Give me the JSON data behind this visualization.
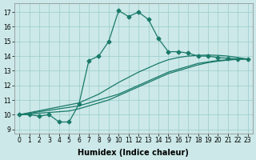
{
  "xlabel": "Humidex (Indice chaleur)",
  "bg_color": "#cce8e8",
  "grid_color": "#99cccc",
  "line_color": "#1a7a6a",
  "xlim": [
    -0.5,
    23.5
  ],
  "ylim": [
    8.7,
    17.6
  ],
  "xticks": [
    0,
    1,
    2,
    3,
    4,
    5,
    6,
    7,
    8,
    9,
    10,
    11,
    12,
    13,
    14,
    15,
    16,
    17,
    18,
    19,
    20,
    21,
    22,
    23
  ],
  "yticks": [
    9,
    10,
    11,
    12,
    13,
    14,
    15,
    16,
    17
  ],
  "line1_x": [
    0,
    1,
    2,
    3,
    4,
    5,
    6,
    7,
    8,
    9,
    10,
    11,
    12,
    13,
    14,
    15,
    16,
    17,
    18,
    19,
    20,
    21,
    22,
    23
  ],
  "line1_y": [
    10.0,
    10.0,
    9.9,
    10.0,
    9.5,
    9.5,
    10.7,
    13.7,
    14.0,
    15.0,
    17.1,
    16.7,
    17.0,
    16.5,
    15.2,
    14.3,
    14.3,
    14.2,
    14.0,
    14.0,
    13.9,
    13.85,
    13.8,
    13.8
  ],
  "line2_x": [
    0,
    1,
    2,
    3,
    4,
    5,
    6,
    7,
    8,
    9,
    10,
    11,
    12,
    13,
    14,
    15,
    16,
    17,
    18,
    19,
    20,
    21,
    22,
    23
  ],
  "line2_y": [
    10.0,
    10.1,
    10.2,
    10.3,
    10.4,
    10.5,
    10.6,
    10.8,
    11.0,
    11.2,
    11.4,
    11.7,
    12.0,
    12.3,
    12.6,
    12.9,
    13.1,
    13.3,
    13.5,
    13.6,
    13.7,
    13.75,
    13.8,
    13.8
  ],
  "line3_x": [
    0,
    1,
    2,
    3,
    4,
    5,
    6,
    7,
    8,
    9,
    10,
    11,
    12,
    13,
    14,
    15,
    16,
    17,
    18,
    19,
    20,
    21,
    22,
    23
  ],
  "line3_y": [
    10.0,
    10.05,
    10.1,
    10.15,
    10.2,
    10.25,
    10.4,
    10.6,
    10.8,
    11.0,
    11.3,
    11.6,
    11.9,
    12.2,
    12.5,
    12.8,
    13.0,
    13.2,
    13.4,
    13.55,
    13.65,
    13.72,
    13.78,
    13.8
  ],
  "line4_x": [
    0,
    6,
    7,
    8,
    9,
    10,
    11,
    12,
    13,
    14,
    15,
    16,
    17,
    18,
    19,
    20,
    21,
    22,
    23
  ],
  "line4_y": [
    10.0,
    10.8,
    11.1,
    11.4,
    11.8,
    12.2,
    12.55,
    12.9,
    13.2,
    13.5,
    13.75,
    13.9,
    14.0,
    14.05,
    14.07,
    14.05,
    14.0,
    13.9,
    13.8
  ],
  "marker": "D",
  "markersize": 2.5,
  "linewidth": 0.9,
  "label_fontsize": 7,
  "tick_fontsize": 5.5
}
